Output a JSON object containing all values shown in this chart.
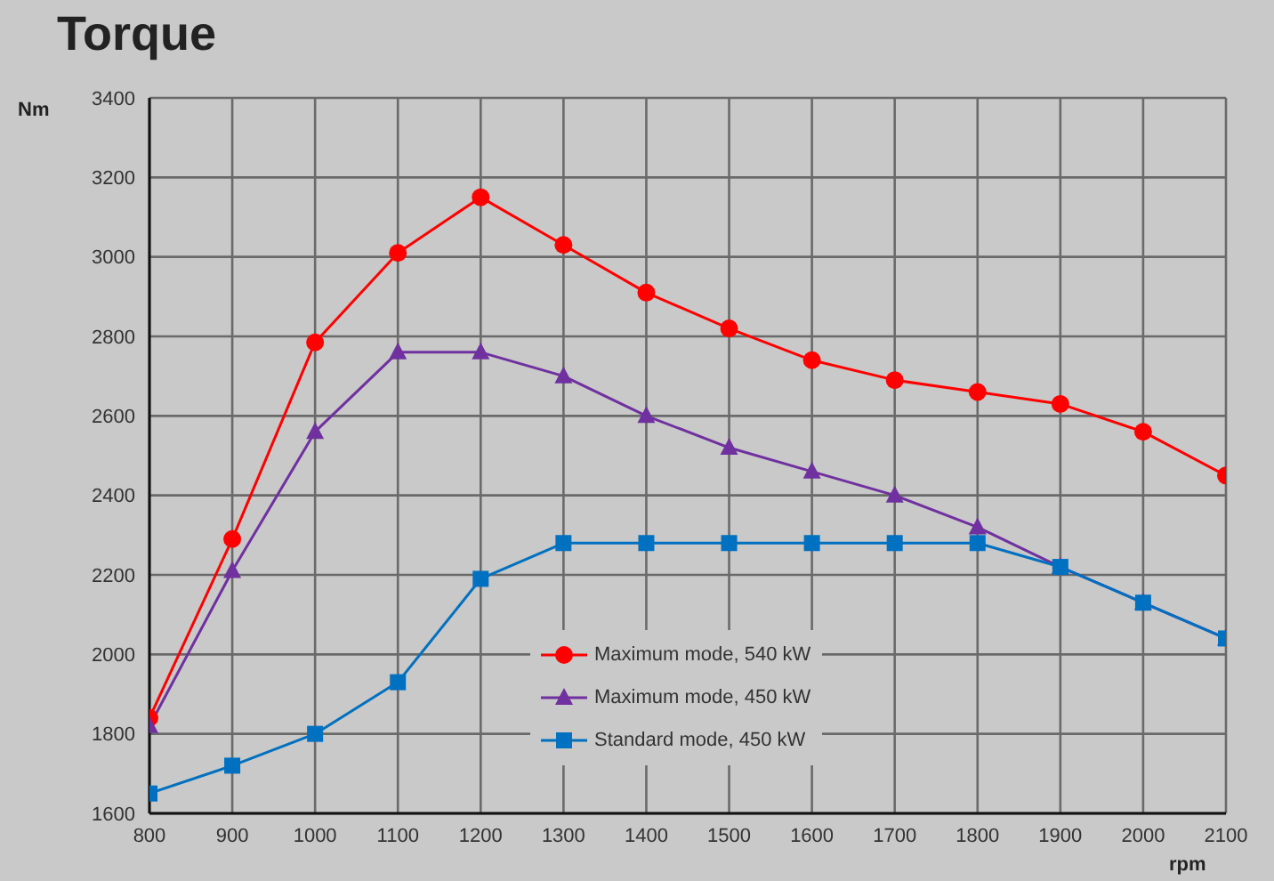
{
  "chart_data": {
    "type": "line",
    "title": "Torque",
    "xlabel": "rpm",
    "annotations": [
      "Nm"
    ],
    "x": [
      800,
      900,
      1000,
      1100,
      1200,
      1300,
      1400,
      1500,
      1600,
      1700,
      1800,
      1900,
      2000,
      2100
    ],
    "series": [
      {
        "name": "Maximum mode, 540 kW",
        "color": "#ff0000",
        "marker": "circle",
        "values": [
          1840,
          2290,
          2785,
          3010,
          3150,
          3030,
          2910,
          2820,
          2740,
          2690,
          2660,
          2630,
          2560,
          2450
        ]
      },
      {
        "name": "Maximum mode, 450 kW",
        "color": "#7030a0",
        "marker": "triangle",
        "values": [
          1820,
          2210,
          2560,
          2760,
          2760,
          2700,
          2600,
          2520,
          2460,
          2400,
          2320,
          2220,
          2130,
          2040
        ]
      },
      {
        "name": "Standard mode, 450 kW",
        "color": "#0070c0",
        "marker": "square",
        "values": [
          1650,
          1720,
          1800,
          1930,
          2190,
          2280,
          2280,
          2280,
          2280,
          2280,
          2280,
          2220,
          2130,
          2040
        ]
      }
    ],
    "xlim": [
      800,
      2100
    ],
    "xticks": [
      800,
      900,
      1000,
      1100,
      1200,
      1300,
      1400,
      1500,
      1600,
      1700,
      1800,
      1900,
      2000,
      2100
    ],
    "ylim": [
      1600,
      3400
    ],
    "yticks": [
      1600,
      1800,
      2000,
      2200,
      2400,
      2600,
      2800,
      3000,
      3200,
      3400
    ],
    "grid": true,
    "legend": "bottom",
    "line_style": "solid"
  }
}
